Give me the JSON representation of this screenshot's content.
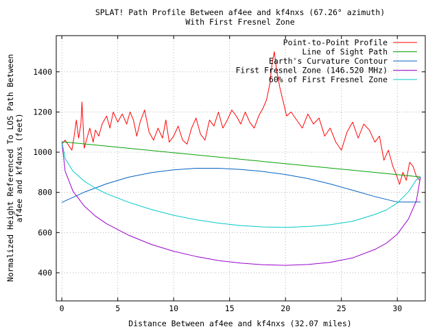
{
  "chart_data": {
    "type": "line",
    "title": "SPLAT! Path Profile Between af4ee and kf4nxs (67.26° azimuth)",
    "subtitle": "With First Fresnel Zone",
    "xlabel": "Distance Between af4ee and kf4nxs (32.07 miles)",
    "ylabel_lines": [
      "Normalized Height Referenced To LOS Path Between",
      "af4ee and kf4nxs (feet)"
    ],
    "xlim": [
      -0.5,
      32.5
    ],
    "ylim": [
      260,
      1580
    ],
    "x_ticks": [
      0,
      5,
      10,
      15,
      20,
      25,
      30
    ],
    "y_ticks": [
      400,
      600,
      800,
      1000,
      1200,
      1400
    ],
    "grid": true,
    "legend_position": "top-right",
    "series": [
      {
        "name": "Point-to-Point Profile",
        "color": "#ff0000",
        "x": [
          0,
          0.3,
          0.6,
          0.9,
          1.1,
          1.3,
          1.5,
          1.7,
          1.8,
          2.0,
          2.2,
          2.5,
          2.8,
          3.0,
          3.3,
          3.6,
          4.0,
          4.3,
          4.6,
          5.0,
          5.4,
          5.8,
          6.1,
          6.4,
          6.7,
          7.0,
          7.4,
          7.8,
          8.2,
          8.6,
          9.0,
          9.3,
          9.6,
          10.0,
          10.4,
          10.8,
          11.2,
          11.6,
          12.0,
          12.4,
          12.8,
          13.2,
          13.6,
          14.0,
          14.4,
          14.8,
          15.2,
          15.6,
          16.0,
          16.4,
          16.8,
          17.2,
          17.6,
          18.0,
          18.3,
          18.6,
          18.8,
          19.0,
          19.2,
          19.5,
          19.8,
          20.1,
          20.5,
          21.0,
          21.5,
          22.0,
          22.5,
          23.0,
          23.5,
          24.0,
          24.5,
          25.0,
          25.5,
          26.0,
          26.5,
          27.0,
          27.5,
          28.0,
          28.4,
          28.8,
          29.2,
          29.6,
          29.9,
          30.2,
          30.5,
          30.8,
          31.1,
          31.4,
          31.7,
          32.0
        ],
        "y": [
          1040,
          1060,
          1035,
          1010,
          1080,
          1160,
          1070,
          1140,
          1250,
          1020,
          1060,
          1120,
          1050,
          1110,
          1080,
          1140,
          1180,
          1120,
          1200,
          1150,
          1190,
          1140,
          1200,
          1160,
          1080,
          1150,
          1210,
          1100,
          1060,
          1120,
          1070,
          1160,
          1050,
          1080,
          1130,
          1060,
          1040,
          1120,
          1170,
          1090,
          1060,
          1160,
          1130,
          1200,
          1120,
          1160,
          1210,
          1180,
          1140,
          1200,
          1150,
          1120,
          1180,
          1220,
          1260,
          1340,
          1440,
          1500,
          1410,
          1320,
          1250,
          1180,
          1200,
          1160,
          1120,
          1190,
          1140,
          1170,
          1080,
          1120,
          1050,
          1010,
          1100,
          1150,
          1070,
          1140,
          1110,
          1050,
          1080,
          960,
          1010,
          930,
          890,
          840,
          900,
          860,
          950,
          930,
          880,
          860
        ]
      },
      {
        "name": "Line of Sight Path",
        "color": "#00a000",
        "x": [
          0,
          32.07
        ],
        "y": [
          1052,
          877
        ]
      },
      {
        "name": "Earth's Curvature Contour",
        "color": "#0060c0",
        "x": [
          0,
          2,
          4,
          6,
          8,
          10,
          12,
          14,
          16,
          18,
          20,
          22,
          24,
          26,
          28,
          30,
          32.07
        ],
        "y": [
          750,
          801,
          843,
          876,
          898,
          912,
          920,
          920,
          914,
          904,
          889,
          869,
          842,
          811,
          779,
          752,
          752
        ]
      },
      {
        "name": "First Fresnel Zone (146.520 MHz)",
        "color": "#9900cc",
        "x": [
          0,
          0.3,
          1,
          2,
          3,
          4,
          6,
          8,
          10,
          12,
          14,
          16,
          18,
          20,
          22,
          24,
          26,
          28,
          29,
          30,
          31,
          31.7,
          32.07
        ],
        "y": [
          1052,
          905,
          805,
          732,
          682,
          644,
          586,
          541,
          507,
          481,
          461,
          448,
          440,
          437,
          441,
          452,
          474,
          516,
          546,
          592,
          668,
          758,
          877
        ]
      },
      {
        "name": "60% of First Fresnel Zone",
        "color": "#00c8c8",
        "x": [
          0,
          0.3,
          1,
          2,
          3,
          4,
          6,
          8,
          10,
          12,
          14,
          16,
          18,
          20,
          22,
          24,
          26,
          28,
          29,
          30,
          31,
          31.7,
          32.07
        ],
        "y": [
          1052,
          968,
          905,
          856,
          821,
          793,
          750,
          715,
          686,
          664,
          647,
          635,
          628,
          626,
          630,
          639,
          656,
          690,
          712,
          747,
          803,
          863,
          877
        ]
      }
    ]
  }
}
